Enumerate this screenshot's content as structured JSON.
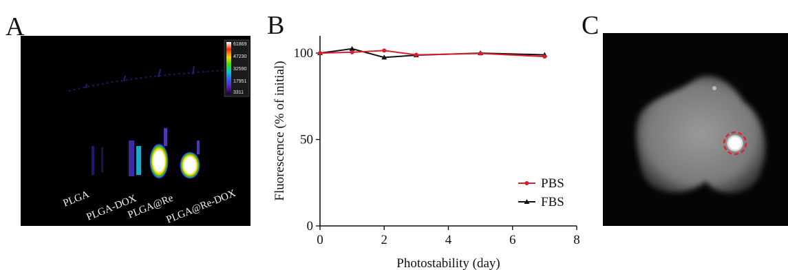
{
  "panels": {
    "a": {
      "letter": "A",
      "sample_labels": [
        "PLGA",
        "PLGA-DOX",
        "PLGA@Re",
        "PLGA@Re-DOX"
      ],
      "color_scale": {
        "ticks": [
          "61869",
          "47230",
          "32590",
          "17951",
          "3311"
        ],
        "colors": [
          "#ffffff",
          "#ff2a00",
          "#ffd400",
          "#39e600",
          "#00c8d0",
          "#3060ff",
          "#5a1fc0",
          "#1a0033"
        ]
      }
    },
    "b": {
      "letter": "B"
    },
    "c": {
      "letter": "C",
      "highlight_color": "#e0202a"
    }
  },
  "chart_data": {
    "type": "line",
    "xlabel": "Photostability (day)",
    "ylabel": "Fluorescence (% of initial)",
    "xlim": [
      0,
      8
    ],
    "ylim": [
      0,
      110
    ],
    "xticks": [
      0,
      2,
      4,
      6,
      8
    ],
    "yticks": [
      0,
      50,
      100
    ],
    "grid": false,
    "legend_position": "bottom-right",
    "series": [
      {
        "name": "PBS",
        "color": "#d81e2c",
        "marker": "circle",
        "x": [
          0,
          1,
          2,
          3,
          5,
          7
        ],
        "y": [
          100,
          100.5,
          101.5,
          99,
          99.8,
          98
        ]
      },
      {
        "name": "FBS",
        "color": "#111111",
        "marker": "triangle",
        "x": [
          0,
          1,
          2,
          3,
          5,
          7
        ],
        "y": [
          100,
          102.5,
          97.5,
          98.8,
          100,
          99
        ]
      }
    ]
  }
}
